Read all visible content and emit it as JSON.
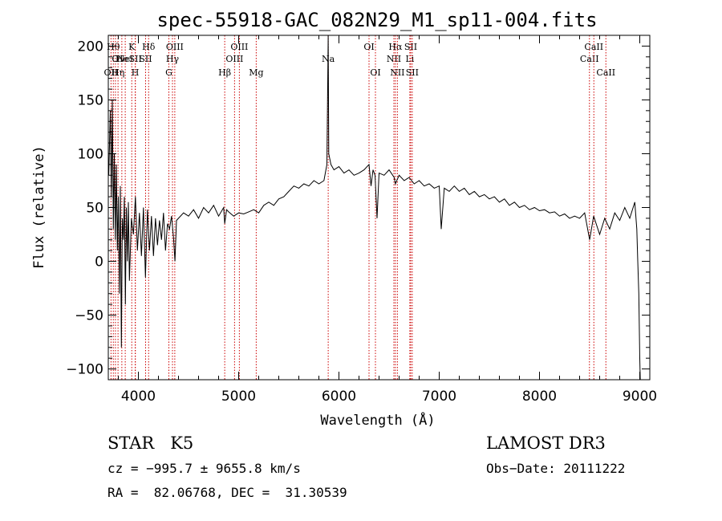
{
  "chart_data": {
    "type": "line",
    "title": "spec-55918-GAC_082N29_M1_sp11-004.fits",
    "xlabel": "Wavelength (Å)",
    "ylabel": "Flux (relative)",
    "xlim": [
      3700,
      9100
    ],
    "ylim": [
      -110,
      210
    ],
    "x_ticks": [
      4000,
      5000,
      6000,
      7000,
      8000,
      9000
    ],
    "y_ticks": [
      -100,
      -50,
      0,
      50,
      100,
      150,
      200
    ],
    "x_tick_labels": [
      "4000",
      "5000",
      "6000",
      "7000",
      "8000",
      "9000"
    ],
    "y_tick_labels": [
      "−100",
      "−50",
      "0",
      "50",
      "100",
      "150",
      "200"
    ],
    "series": [
      {
        "color": "#000000",
        "points": [
          [
            3705,
            80
          ],
          [
            3720,
            140
          ],
          [
            3730,
            60
          ],
          [
            3740,
            150
          ],
          [
            3750,
            30
          ],
          [
            3760,
            100
          ],
          [
            3770,
            20
          ],
          [
            3780,
            90
          ],
          [
            3790,
            10
          ],
          [
            3800,
            60
          ],
          [
            3810,
            -30
          ],
          [
            3820,
            70
          ],
          [
            3830,
            -80
          ],
          [
            3840,
            40
          ],
          [
            3850,
            20
          ],
          [
            3860,
            60
          ],
          [
            3870,
            -40
          ],
          [
            3880,
            50
          ],
          [
            3890,
            0
          ],
          [
            3900,
            55
          ],
          [
            3910,
            -18
          ],
          [
            3930,
            40
          ],
          [
            3950,
            25
          ],
          [
            3970,
            60
          ],
          [
            3990,
            10
          ],
          [
            4010,
            45
          ],
          [
            4030,
            5
          ],
          [
            4050,
            50
          ],
          [
            4070,
            -15
          ],
          [
            4090,
            48
          ],
          [
            4110,
            10
          ],
          [
            4130,
            42
          ],
          [
            4150,
            5
          ],
          [
            4170,
            40
          ],
          [
            4190,
            15
          ],
          [
            4210,
            38
          ],
          [
            4230,
            20
          ],
          [
            4250,
            45
          ],
          [
            4270,
            10
          ],
          [
            4290,
            35
          ],
          [
            4310,
            30
          ],
          [
            4330,
            42
          ],
          [
            4350,
            22
          ],
          [
            4365,
            0
          ],
          [
            4380,
            38
          ],
          [
            4400,
            40
          ],
          [
            4450,
            45
          ],
          [
            4500,
            42
          ],
          [
            4550,
            48
          ],
          [
            4600,
            40
          ],
          [
            4650,
            50
          ],
          [
            4700,
            45
          ],
          [
            4750,
            52
          ],
          [
            4800,
            42
          ],
          [
            4850,
            50
          ],
          [
            4861,
            35
          ],
          [
            4880,
            48
          ],
          [
            4900,
            46
          ],
          [
            4950,
            42
          ],
          [
            5000,
            45
          ],
          [
            5050,
            44
          ],
          [
            5100,
            46
          ],
          [
            5150,
            48
          ],
          [
            5200,
            45
          ],
          [
            5250,
            52
          ],
          [
            5300,
            55
          ],
          [
            5350,
            52
          ],
          [
            5400,
            58
          ],
          [
            5450,
            60
          ],
          [
            5500,
            65
          ],
          [
            5550,
            70
          ],
          [
            5600,
            68
          ],
          [
            5650,
            72
          ],
          [
            5700,
            70
          ],
          [
            5750,
            75
          ],
          [
            5800,
            72
          ],
          [
            5850,
            75
          ],
          [
            5880,
            90
          ],
          [
            5893,
            212
          ],
          [
            5898,
            100
          ],
          [
            5920,
            90
          ],
          [
            5950,
            85
          ],
          [
            6000,
            88
          ],
          [
            6050,
            82
          ],
          [
            6100,
            85
          ],
          [
            6150,
            80
          ],
          [
            6200,
            82
          ],
          [
            6250,
            85
          ],
          [
            6300,
            90
          ],
          [
            6320,
            70
          ],
          [
            6340,
            85
          ],
          [
            6360,
            80
          ],
          [
            6380,
            40
          ],
          [
            6400,
            82
          ],
          [
            6450,
            80
          ],
          [
            6500,
            85
          ],
          [
            6550,
            78
          ],
          [
            6563,
            72
          ],
          [
            6600,
            80
          ],
          [
            6650,
            75
          ],
          [
            6700,
            78
          ],
          [
            6750,
            72
          ],
          [
            6800,
            75
          ],
          [
            6850,
            70
          ],
          [
            6900,
            72
          ],
          [
            6950,
            68
          ],
          [
            7000,
            70
          ],
          [
            7020,
            30
          ],
          [
            7050,
            68
          ],
          [
            7100,
            65
          ],
          [
            7150,
            70
          ],
          [
            7200,
            65
          ],
          [
            7250,
            68
          ],
          [
            7300,
            62
          ],
          [
            7350,
            65
          ],
          [
            7400,
            60
          ],
          [
            7450,
            62
          ],
          [
            7500,
            58
          ],
          [
            7550,
            60
          ],
          [
            7600,
            55
          ],
          [
            7650,
            58
          ],
          [
            7700,
            52
          ],
          [
            7750,
            55
          ],
          [
            7800,
            50
          ],
          [
            7850,
            52
          ],
          [
            7900,
            48
          ],
          [
            7950,
            50
          ],
          [
            8000,
            47
          ],
          [
            8050,
            48
          ],
          [
            8100,
            45
          ],
          [
            8150,
            46
          ],
          [
            8200,
            42
          ],
          [
            8250,
            44
          ],
          [
            8300,
            40
          ],
          [
            8350,
            42
          ],
          [
            8400,
            40
          ],
          [
            8450,
            45
          ],
          [
            8500,
            20
          ],
          [
            8540,
            42
          ],
          [
            8600,
            25
          ],
          [
            8650,
            40
          ],
          [
            8700,
            30
          ],
          [
            8750,
            45
          ],
          [
            8800,
            38
          ],
          [
            8850,
            50
          ],
          [
            8900,
            40
          ],
          [
            8950,
            55
          ],
          [
            8970,
            30
          ],
          [
            8980,
            0
          ],
          [
            8990,
            -30
          ],
          [
            9000,
            -90
          ],
          [
            9005,
            -110
          ]
        ]
      }
    ],
    "lines": [
      {
        "x": 3727,
        "labels": [
          "OII"
        ],
        "row": 3
      },
      {
        "x": 3750,
        "labels": [
          "Hθ"
        ],
        "row": 1
      },
      {
        "x": 3771,
        "labels": [
          "O"
        ],
        "row": 2
      },
      {
        "x": 3797,
        "labels": [
          "Hη"
        ],
        "row": 3
      },
      {
        "x": 3835,
        "labels": [
          "He"
        ],
        "row": 2
      },
      {
        "x": 3869,
        "labels": [
          "NeI"
        ],
        "row": 2
      },
      {
        "x": 3934,
        "labels": [
          "K"
        ],
        "row": 1
      },
      {
        "x": 3968,
        "labels": [
          "H"
        ],
        "row": 3
      },
      {
        "x": 3970,
        "labels": [
          "SII"
        ],
        "row": 2
      },
      {
        "x": 4072,
        "labels": [
          "SII"
        ],
        "row": 2
      },
      {
        "x": 4102,
        "labels": [
          "Hδ"
        ],
        "row": 1
      },
      {
        "x": 4304,
        "labels": [
          "G"
        ],
        "row": 3
      },
      {
        "x": 4340,
        "labels": [
          "Hγ"
        ],
        "row": 2
      },
      {
        "x": 4363,
        "labels": [
          "OIII"
        ],
        "row": 1
      },
      {
        "x": 4861,
        "labels": [
          "Hβ"
        ],
        "row": 3
      },
      {
        "x": 4959,
        "labels": [
          "OIII"
        ],
        "row": 2
      },
      {
        "x": 5007,
        "labels": [
          "OIII"
        ],
        "row": 1
      },
      {
        "x": 5175,
        "labels": [
          "Mg"
        ],
        "row": 3
      },
      {
        "x": 5893,
        "labels": [
          "Na"
        ],
        "row": 2
      },
      {
        "x": 6300,
        "labels": [
          "OI"
        ],
        "row": 1
      },
      {
        "x": 6364,
        "labels": [
          "OI"
        ],
        "row": 3
      },
      {
        "x": 6548,
        "labels": [
          "NII"
        ],
        "row": 2
      },
      {
        "x": 6563,
        "labels": [
          "Hα"
        ],
        "row": 1
      },
      {
        "x": 6583,
        "labels": [
          "NII"
        ],
        "row": 3
      },
      {
        "x": 6707,
        "labels": [
          "Li"
        ],
        "row": 2
      },
      {
        "x": 6716,
        "labels": [
          "SII"
        ],
        "row": 1
      },
      {
        "x": 6731,
        "labels": [
          "SII"
        ],
        "row": 3
      },
      {
        "x": 8498,
        "labels": [
          "CaII"
        ],
        "row": 2
      },
      {
        "x": 8542,
        "labels": [
          "CaII"
        ],
        "row": 1
      },
      {
        "x": 8662,
        "labels": [
          "CaII"
        ],
        "row": 3
      }
    ]
  },
  "footer": {
    "class_line": "STAR   K5",
    "survey": "LAMOST DR3",
    "cz": "cz = −995.7 ± 9655.8 km/s",
    "obs_date": "Obs−Date: 20111222",
    "radec": "RA =  82.06768, DEC =  31.30539"
  },
  "colors": {
    "spectrum": "#000000",
    "line_markers": "#cc0000",
    "axis": "#000000"
  }
}
